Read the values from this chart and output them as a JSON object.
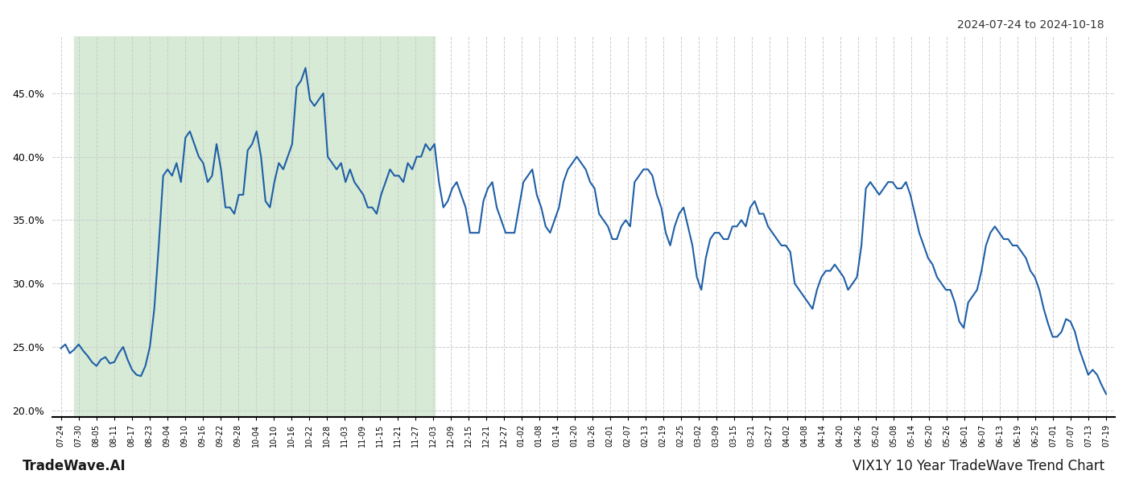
{
  "title_top_right": "2024-07-24 to 2024-10-18",
  "title_bottom_left": "TradeWave.AI",
  "title_bottom_right": "VIX1Y 10 Year TradeWave Trend Chart",
  "line_color": "#1f5fa6",
  "line_width": 1.5,
  "background_color": "#ffffff",
  "grid_color": "#cccccc",
  "shaded_region_color": "#d6ead6",
  "shaded_start": "2024-07-27",
  "shaded_end": "2024-10-16",
  "ylim": [
    0.195,
    0.495
  ],
  "yticks": [
    0.2,
    0.25,
    0.3,
    0.35,
    0.4,
    0.45
  ],
  "x_tick_labels": [
    "07-24",
    "07-30",
    "08-05",
    "08-11",
    "08-17",
    "08-23",
    "09-04",
    "09-10",
    "09-16",
    "09-22",
    "09-28",
    "10-04",
    "10-10",
    "10-16",
    "10-22",
    "10-28",
    "11-03",
    "11-09",
    "11-15",
    "11-21",
    "11-27",
    "12-03",
    "12-09",
    "12-15",
    "12-21",
    "12-27",
    "01-02",
    "01-08",
    "01-14",
    "01-20",
    "01-26",
    "02-01",
    "02-07",
    "02-13",
    "02-19",
    "02-25",
    "03-02",
    "03-09",
    "03-15",
    "03-21",
    "03-27",
    "04-02",
    "04-08",
    "04-14",
    "04-20",
    "04-26",
    "05-02",
    "05-08",
    "05-14",
    "05-20",
    "05-26",
    "06-01",
    "06-07",
    "06-13",
    "06-19",
    "06-25",
    "07-01",
    "07-07",
    "07-13",
    "07-19"
  ],
  "data_values": [
    0.249,
    0.252,
    0.245,
    0.248,
    0.252,
    0.247,
    0.243,
    0.238,
    0.235,
    0.24,
    0.242,
    0.237,
    0.238,
    0.245,
    0.25,
    0.24,
    0.232,
    0.228,
    0.227,
    0.235,
    0.25,
    0.28,
    0.33,
    0.385,
    0.39,
    0.385,
    0.395,
    0.38,
    0.415,
    0.42,
    0.41,
    0.4,
    0.395,
    0.38,
    0.385,
    0.41,
    0.39,
    0.36,
    0.36,
    0.355,
    0.37,
    0.37,
    0.405,
    0.41,
    0.42,
    0.4,
    0.365,
    0.36,
    0.38,
    0.395,
    0.39,
    0.4,
    0.41,
    0.455,
    0.46,
    0.47,
    0.445,
    0.44,
    0.445,
    0.45,
    0.4,
    0.395,
    0.39,
    0.395,
    0.38,
    0.39,
    0.38,
    0.375,
    0.37,
    0.36,
    0.36,
    0.355,
    0.37,
    0.38,
    0.39,
    0.385,
    0.385,
    0.38,
    0.395,
    0.39,
    0.4,
    0.4,
    0.41,
    0.405,
    0.41,
    0.38,
    0.36,
    0.365,
    0.375,
    0.38,
    0.37,
    0.36,
    0.34,
    0.34,
    0.34,
    0.365,
    0.375,
    0.38,
    0.36,
    0.35,
    0.34,
    0.34,
    0.34,
    0.36,
    0.38,
    0.385,
    0.39,
    0.37,
    0.36,
    0.345,
    0.34,
    0.35,
    0.36,
    0.38,
    0.39,
    0.395,
    0.4,
    0.395,
    0.39,
    0.38,
    0.375,
    0.355,
    0.35,
    0.345,
    0.335,
    0.335,
    0.345,
    0.35,
    0.345,
    0.38,
    0.385,
    0.39,
    0.39,
    0.385,
    0.37,
    0.36,
    0.34,
    0.33,
    0.345,
    0.355,
    0.36,
    0.345,
    0.33,
    0.305,
    0.295,
    0.32,
    0.335,
    0.34,
    0.34,
    0.335,
    0.335,
    0.345,
    0.345,
    0.35,
    0.345,
    0.36,
    0.365,
    0.355,
    0.355,
    0.345,
    0.34,
    0.335,
    0.33,
    0.33,
    0.325,
    0.3,
    0.295,
    0.29,
    0.285,
    0.28,
    0.295,
    0.305,
    0.31,
    0.31,
    0.315,
    0.31,
    0.305,
    0.295,
    0.3,
    0.305,
    0.33,
    0.375,
    0.38,
    0.375,
    0.37,
    0.375,
    0.38,
    0.38,
    0.375,
    0.375,
    0.38,
    0.37,
    0.355,
    0.34,
    0.33,
    0.32,
    0.315,
    0.305,
    0.3,
    0.295,
    0.295,
    0.285,
    0.27,
    0.265,
    0.285,
    0.29,
    0.295,
    0.31,
    0.33,
    0.34,
    0.345,
    0.34,
    0.335,
    0.335,
    0.33,
    0.33,
    0.325,
    0.32,
    0.31,
    0.305,
    0.295,
    0.28,
    0.268,
    0.258,
    0.258,
    0.262,
    0.272,
    0.27,
    0.262,
    0.248,
    0.238,
    0.228,
    0.232,
    0.228,
    0.22,
    0.213
  ]
}
